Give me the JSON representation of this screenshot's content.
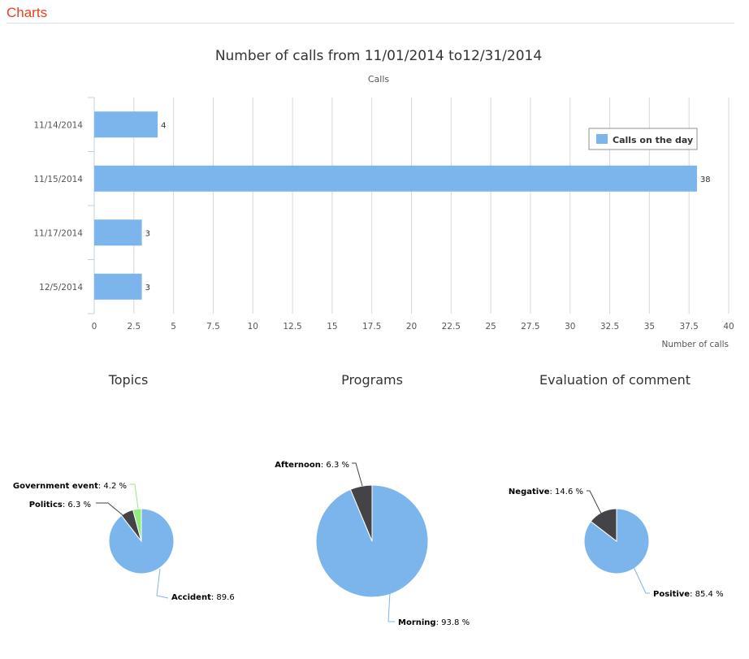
{
  "header": {
    "title": "Charts"
  },
  "chart_data": [
    {
      "type": "bar",
      "orientation": "horizontal",
      "title": "Number of calls from 11/01/2014 to12/31/2014",
      "subtitle": "Calls",
      "xlabel": "Number of calls",
      "categories": [
        "11/14/2014",
        "11/15/2014",
        "11/17/2014",
        "12/5/2014"
      ],
      "series": [
        {
          "name": "Calls on the day",
          "values": [
            4,
            38,
            3,
            3
          ],
          "color": "#7cb5ec"
        }
      ],
      "data_labels": [
        "4",
        "38",
        "3",
        "3"
      ],
      "xlim": [
        0,
        40
      ],
      "ticks": [
        "0",
        "2.5",
        "5",
        "7.5",
        "10",
        "12.5",
        "15",
        "17.5",
        "20",
        "22.5",
        "25",
        "27.5",
        "30",
        "32.5",
        "35",
        "37.5",
        "40"
      ],
      "grid": true,
      "legend_position": "top-right"
    },
    {
      "type": "pie",
      "title": "Topics",
      "slices": [
        {
          "name": "Accident",
          "value": 89.6,
          "label": ": 89.6",
          "color": "#7cb5ec"
        },
        {
          "name": "Politics",
          "value": 6.3,
          "label": ": 6.3 %",
          "color": "#434348"
        },
        {
          "name": "Government event",
          "value": 4.2,
          "label": ": 4.2 %",
          "color": "#90ed7d"
        }
      ]
    },
    {
      "type": "pie",
      "title": "Programs",
      "slices": [
        {
          "name": "Morning",
          "value": 93.8,
          "label": ": 93.8 %",
          "color": "#7cb5ec"
        },
        {
          "name": "Afternoon",
          "value": 6.3,
          "label": ": 6.3 %",
          "color": "#434348"
        }
      ]
    },
    {
      "type": "pie",
      "title": "Evaluation of comment",
      "slices": [
        {
          "name": "Positive",
          "value": 85.4,
          "label": ": 85.4 %",
          "color": "#7cb5ec"
        },
        {
          "name": "Negative",
          "value": 14.6,
          "label": ": 14.6 %",
          "color": "#434348"
        }
      ]
    }
  ]
}
